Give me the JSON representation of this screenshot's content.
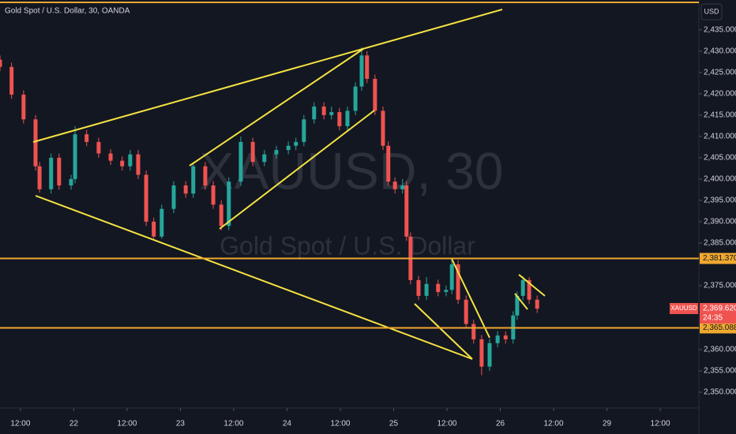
{
  "chart_data": {
    "type": "candlestick",
    "title": "Gold Spot / U.S. Dollar, 30, OANDA",
    "watermark": "XAUUSD, 30",
    "watermark_subtitle": "Gold Spot / U.S. Dollar",
    "currency": "USD",
    "colors": {
      "up": "#26a69a",
      "down": "#ef5350",
      "level": "#f0a830"
    },
    "x": [
      7.4,
      10.0,
      12.7,
      15.4,
      16.3,
      18.9,
      20.7,
      23.4,
      24.3,
      26.9,
      29.6,
      32.3,
      34.9,
      36.7,
      38.5,
      40.3,
      42.0,
      43.8,
      46.5,
      49.2,
      50.9,
      53.6,
      55.4,
      57.2,
      58.9,
      61.6,
      64.3,
      66.9,
      69.6,
      72.3,
      74.0,
      75.8,
      78.1,
      80.3,
      82.0,
      83.8,
      85.6,
      87.4,
      88.8,
      90.0,
      91.8,
      93.6,
      94.8,
      96.3,
      98.0,
      98.9,
      99.8,
      101.6,
      103.4,
      106.0,
      107.8,
      109.1,
      110.5,
      112.3,
      114.0,
      115.8,
      117.6,
      119.4,
      121.2,
      122.9,
      123.8,
      125.1,
      126.5,
      128.3
    ],
    "open": [
      2428.0,
      2426.3,
      2419.8,
      2414.0,
      2403.0,
      2397.6,
      2405.0,
      2398.5,
      2400.0,
      2410.5,
      2408.7,
      2406.0,
      2404.3,
      2403.0,
      2405.8,
      2401.0,
      2390.0,
      2386.5,
      2393.0,
      2398.5,
      2396.6,
      2403.0,
      2398.5,
      2394.0,
      2389.0,
      2399.4,
      2408.7,
      2404.0,
      2405.8,
      2406.8,
      2407.8,
      2408.7,
      2414.0,
      2417.0,
      2415.0,
      2415.7,
      2412.4,
      2416.0,
      2421.7,
      2429.0,
      2423.5,
      2416.0,
      2407.8,
      2399.4,
      2397.6,
      2398.5,
      2386.5,
      2376.3,
      2372.6,
      2375.4,
      2373.5,
      2374.0,
      2380.0,
      2371.7,
      2366.0,
      2362.4,
      2356.0,
      2361.5,
      2363.3,
      2362.4,
      2368.0,
      2372.6,
      2376.3,
      2371.7
    ],
    "high": [
      2429.0,
      2427.3,
      2420.8,
      2415.0,
      2404.0,
      2406.0,
      2406.0,
      2401.0,
      2412.4,
      2411.5,
      2409.7,
      2407.0,
      2405.3,
      2406.8,
      2406.8,
      2402.0,
      2391.0,
      2394.0,
      2399.5,
      2399.5,
      2403.5,
      2404.0,
      2399.5,
      2395.0,
      2400.4,
      2410.0,
      2409.7,
      2406.8,
      2407.8,
      2408.8,
      2409.7,
      2415.0,
      2418.0,
      2418.0,
      2417.0,
      2416.7,
      2417.0,
      2422.7,
      2430.9,
      2430.0,
      2424.5,
      2417.0,
      2408.8,
      2400.4,
      2400.0,
      2399.5,
      2387.5,
      2377.3,
      2377.0,
      2376.4,
      2375.0,
      2381.3,
      2381.0,
      2372.7,
      2367.0,
      2363.4,
      2362.5,
      2364.3,
      2364.3,
      2369.0,
      2373.6,
      2377.2,
      2377.0,
      2372.7
    ],
    "low": [
      2425.3,
      2418.8,
      2413.0,
      2402.0,
      2396.8,
      2396.6,
      2397.5,
      2397.5,
      2399.0,
      2407.7,
      2405.0,
      2403.3,
      2402.0,
      2402.0,
      2400.0,
      2389.0,
      2386.0,
      2386.0,
      2392.0,
      2395.6,
      2395.6,
      2397.5,
      2393.0,
      2388.0,
      2388.0,
      2398.4,
      2403.0,
      2403.0,
      2404.8,
      2405.8,
      2406.8,
      2407.7,
      2413.0,
      2414.0,
      2414.0,
      2411.4,
      2411.4,
      2415.0,
      2420.7,
      2422.5,
      2415.0,
      2406.8,
      2398.4,
      2396.6,
      2396.6,
      2385.5,
      2375.3,
      2371.6,
      2371.6,
      2372.5,
      2372.5,
      2373.0,
      2370.7,
      2365.0,
      2361.4,
      2354.0,
      2355.0,
      2360.5,
      2361.4,
      2361.4,
      2367.0,
      2371.6,
      2370.7,
      2368.6
    ],
    "close": [
      2426.3,
      2419.8,
      2414.0,
      2403.0,
      2397.6,
      2405.0,
      2398.5,
      2400.0,
      2410.5,
      2408.7,
      2406.0,
      2404.3,
      2403.0,
      2405.8,
      2401.0,
      2390.0,
      2386.5,
      2393.0,
      2398.5,
      2396.6,
      2403.0,
      2398.5,
      2394.0,
      2389.0,
      2399.4,
      2408.7,
      2404.0,
      2405.8,
      2406.8,
      2407.8,
      2408.7,
      2414.0,
      2417.0,
      2415.0,
      2415.7,
      2412.4,
      2416.0,
      2421.7,
      2429.0,
      2423.5,
      2416.0,
      2407.8,
      2399.4,
      2397.6,
      2398.5,
      2386.5,
      2376.3,
      2372.6,
      2375.4,
      2373.5,
      2374.0,
      2380.0,
      2371.7,
      2366.0,
      2362.4,
      2356.0,
      2361.5,
      2363.3,
      2362.4,
      2368.0,
      2372.6,
      2376.3,
      2371.7,
      2369.6
    ],
    "xlim": [
      7.4,
      164.7
    ],
    "xticks": [
      {
        "value": 12,
        "label": "12:00"
      },
      {
        "value": 24,
        "label": "22"
      },
      {
        "value": 36,
        "label": "12:00"
      },
      {
        "value": 48,
        "label": "23"
      },
      {
        "value": 60,
        "label": "12:00"
      },
      {
        "value": 72,
        "label": "24"
      },
      {
        "value": 84,
        "label": "12:00"
      },
      {
        "value": 96,
        "label": "25"
      },
      {
        "value": 108,
        "label": "12:00"
      },
      {
        "value": 120,
        "label": "26"
      },
      {
        "value": 132,
        "label": "12:00"
      },
      {
        "value": 144,
        "label": "29"
      },
      {
        "value": 156,
        "label": "12:00"
      }
    ],
    "ylim": [
      2346.3,
      2442.0
    ],
    "yticks": [
      {
        "value": 2435,
        "label": "2,435.000"
      },
      {
        "value": 2430,
        "label": "2,430.000"
      },
      {
        "value": 2425,
        "label": "2,425.000"
      },
      {
        "value": 2420,
        "label": "2,420.000"
      },
      {
        "value": 2415,
        "label": "2,415.000"
      },
      {
        "value": 2410,
        "label": "2,410.000"
      },
      {
        "value": 2405,
        "label": "2,405.000"
      },
      {
        "value": 2400,
        "label": "2,400.000"
      },
      {
        "value": 2395,
        "label": "2,395.000"
      },
      {
        "value": 2390,
        "label": "2,390.000"
      },
      {
        "value": 2385,
        "label": "2,385.000"
      },
      {
        "value": 2375,
        "label": "2,375.000"
      },
      {
        "value": 2360,
        "label": "2,360.000"
      },
      {
        "value": 2355,
        "label": "2,355.000"
      },
      {
        "value": 2350,
        "label": "2,350.000"
      }
    ],
    "levels": [
      {
        "value": 2381.37,
        "label": "2,381.370"
      },
      {
        "value": 2365.088,
        "label": "2,365.088"
      }
    ],
    "last_price": {
      "value": 2369.62,
      "label": "2,369.620"
    },
    "symbol": "XAUUSD",
    "countdown": "24:35"
  }
}
